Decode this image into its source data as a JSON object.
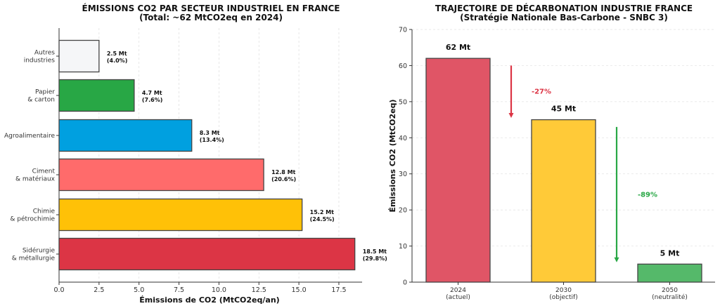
{
  "chart_data": [
    {
      "type": "bar",
      "orientation": "horizontal",
      "title": "ÉMISSIONS CO2 PAR SECTEUR INDUSTRIEL EN FRANCE",
      "subtitle": "(Total: ~62 MtCO2eq en 2024)",
      "xlabel": "Émissions de CO2 (MtCO2eq/an)",
      "ylabel": "",
      "xlim": [
        0,
        19.4
      ],
      "xticks": [
        "0.0",
        "2.5",
        "5.0",
        "7.5",
        "10.0",
        "12.5",
        "15.0",
        "17.5"
      ],
      "grid": "vertical dashed",
      "categories": [
        [
          "Sidérurgie",
          "& métallurgie"
        ],
        [
          "Chimie",
          "& pétrochimie"
        ],
        [
          "Ciment",
          "& matériaux"
        ],
        [
          "Agroalimentaire"
        ],
        [
          "Papier",
          "& carton"
        ],
        [
          "Autres",
          "industries"
        ]
      ],
      "values": [
        18.5,
        15.2,
        12.8,
        8.3,
        4.7,
        2.5
      ],
      "data_labels": [
        [
          "18.5 Mt",
          "(29.8%)"
        ],
        [
          "15.2 Mt",
          "(24.5%)"
        ],
        [
          "12.8 Mt",
          "(20.6%)"
        ],
        [
          "8.3 Mt",
          "(13.4%)"
        ],
        [
          "4.7 Mt",
          "(7.6%)"
        ],
        [
          "2.5 Mt",
          "(4.0%)"
        ]
      ],
      "colors": [
        "#dc3545",
        "#ffc107",
        "#ff6b6b",
        "#00a0e0",
        "#28a745",
        "#f5f6f8"
      ]
    },
    {
      "type": "bar",
      "title": "TRAJECTOIRE DE DÉCARBONATION INDUSTRIE FRANCE",
      "subtitle": "(Stratégie Nationale Bas-Carbone - SNBC 3)",
      "xlabel": "",
      "ylabel": "Émissions CO2 (MtCO2eq)",
      "ylim": [
        0,
        70
      ],
      "yticks": [
        "0",
        "10",
        "20",
        "30",
        "40",
        "50",
        "60",
        "70"
      ],
      "grid": "horizontal dashed",
      "categories": [
        [
          "2024",
          "(actuel)"
        ],
        [
          "2030",
          "(objectif)"
        ],
        [
          "2050",
          "(neutralité)"
        ]
      ],
      "values": [
        62,
        45,
        5
      ],
      "data_labels": [
        "62 Mt",
        "45 Mt",
        "5 Mt"
      ],
      "colors": [
        "#e05566",
        "#ffca38",
        "#55b96a"
      ],
      "annotations": [
        {
          "text": "-27%",
          "color": "#dc3545",
          "arrow_from": 60,
          "arrow_to": 45.5
        },
        {
          "text": "-89%",
          "color": "#28a745",
          "arrow_from": 43,
          "arrow_to": 5.5
        }
      ]
    }
  ]
}
